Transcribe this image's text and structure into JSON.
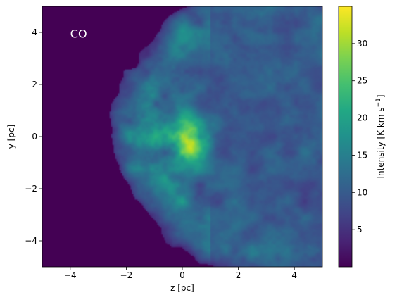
{
  "chart_data": {
    "type": "heatmap",
    "annotation": "CO",
    "xlabel": "z [pc]",
    "ylabel": "y [pc]",
    "xlim": [
      -5,
      5
    ],
    "ylim": [
      -5,
      5
    ],
    "xticks": [
      -4,
      -2,
      0,
      2,
      4
    ],
    "xtick_labels": [
      "−4",
      "−2",
      "0",
      "2",
      "4"
    ],
    "yticks": [
      -4,
      -2,
      0,
      2,
      4
    ],
    "ytick_labels": [
      "−4",
      "−2",
      "0",
      "2",
      "4"
    ],
    "colormap": "viridis",
    "colorbar": {
      "label": "Intensity [K km s",
      "label_sup": "−1",
      "label_close": "]",
      "range": [
        0,
        35
      ],
      "ticks": [
        5,
        10,
        15,
        20,
        25,
        30
      ],
      "tick_labels": [
        "5",
        "10",
        "15",
        "20",
        "25",
        "30"
      ]
    },
    "structure": {
      "shell_center": [
        3.5,
        0.2
      ],
      "shell_radius": 5.9,
      "shell_intensity": 10,
      "edge_intensity": 15,
      "core_center": [
        0.3,
        -0.1
      ],
      "core_radius": [
        0.7,
        1.0
      ],
      "core_intensity": 33,
      "background_intensity": 0
    },
    "grid": false
  }
}
